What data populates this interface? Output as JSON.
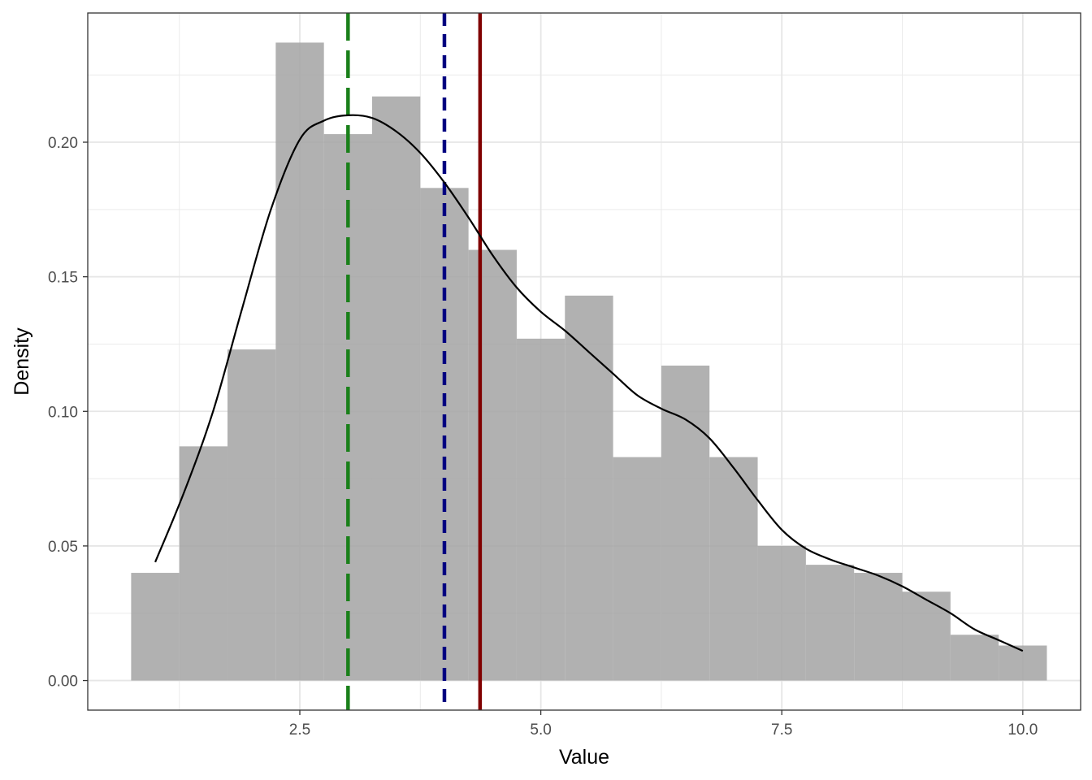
{
  "chart_data": {
    "type": "bar",
    "title": "",
    "xlabel": "Value",
    "ylabel": "Density",
    "xlim": [
      0.3,
      10.6
    ],
    "ylim": [
      -0.011,
      0.248
    ],
    "x_ticks": [
      2.5,
      5.0,
      7.5,
      10.0
    ],
    "x_tick_labels": [
      "2.5",
      "5.0",
      "7.5",
      "10.0"
    ],
    "y_ticks": [
      0.0,
      0.05,
      0.1,
      0.15,
      0.2
    ],
    "y_tick_labels": [
      "0.00",
      "0.05",
      "0.10",
      "0.15",
      "0.20"
    ],
    "grid": true,
    "histogram": {
      "bin_width": 0.5,
      "bin_starts": [
        0.75,
        1.25,
        1.75,
        2.25,
        2.75,
        3.25,
        3.75,
        4.25,
        4.75,
        5.25,
        5.75,
        6.25,
        6.75,
        7.25,
        7.75,
        8.25,
        8.75,
        9.25,
        9.75
      ],
      "values": [
        0.04,
        0.087,
        0.123,
        0.237,
        0.203,
        0.217,
        0.183,
        0.16,
        0.127,
        0.143,
        0.083,
        0.117,
        0.083,
        0.05,
        0.043,
        0.04,
        0.033,
        0.017,
        0.013
      ],
      "color": "#a3a3a3"
    },
    "density_curve": {
      "color": "#000000",
      "points": [
        [
          1.0,
          0.044
        ],
        [
          1.3,
          0.07
        ],
        [
          1.6,
          0.1
        ],
        [
          1.9,
          0.138
        ],
        [
          2.2,
          0.175
        ],
        [
          2.5,
          0.201
        ],
        [
          2.75,
          0.208
        ],
        [
          3.0,
          0.21
        ],
        [
          3.25,
          0.209
        ],
        [
          3.5,
          0.204
        ],
        [
          3.75,
          0.196
        ],
        [
          4.0,
          0.185
        ],
        [
          4.25,
          0.172
        ],
        [
          4.5,
          0.158
        ],
        [
          4.75,
          0.146
        ],
        [
          5.0,
          0.137
        ],
        [
          5.25,
          0.13
        ],
        [
          5.5,
          0.122
        ],
        [
          5.75,
          0.114
        ],
        [
          6.0,
          0.106
        ],
        [
          6.25,
          0.101
        ],
        [
          6.5,
          0.097
        ],
        [
          6.75,
          0.09
        ],
        [
          7.0,
          0.079
        ],
        [
          7.25,
          0.067
        ],
        [
          7.5,
          0.056
        ],
        [
          7.75,
          0.049
        ],
        [
          8.0,
          0.045
        ],
        [
          8.25,
          0.042
        ],
        [
          8.5,
          0.039
        ],
        [
          8.75,
          0.035
        ],
        [
          9.0,
          0.03
        ],
        [
          9.25,
          0.025
        ],
        [
          9.5,
          0.019
        ],
        [
          9.75,
          0.015
        ],
        [
          10.0,
          0.011
        ]
      ]
    },
    "reference_lines": [
      {
        "x": 3.0,
        "color": "#1a801a",
        "style": "long-dash"
      },
      {
        "x": 4.0,
        "color": "#000080",
        "style": "dash"
      },
      {
        "x": 4.37,
        "color": "#800000",
        "style": "solid"
      }
    ]
  }
}
